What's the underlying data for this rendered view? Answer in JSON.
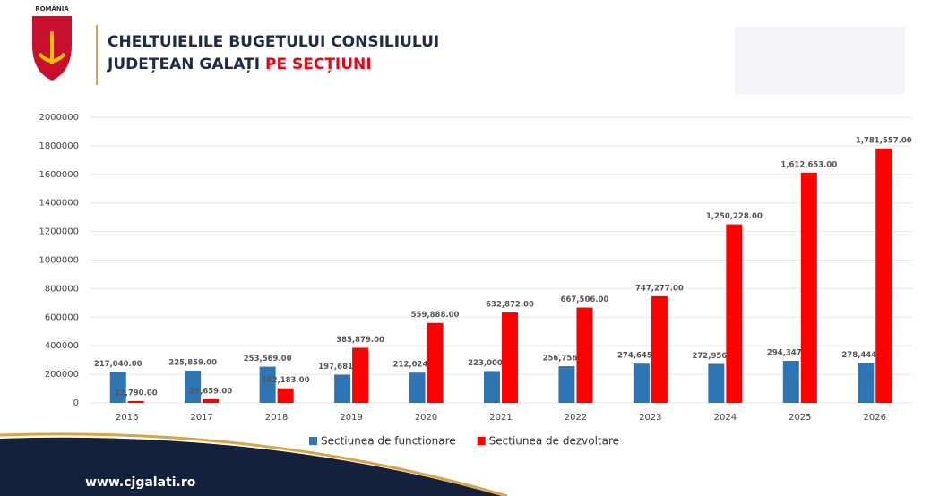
{
  "header": {
    "country": "ROMÂNIA",
    "title_line1": "CHELTUIELILE BUGETULUI CONSILIULUI",
    "title_line2": "JUDEȚEAN GALAȚI",
    "title_highlight": "PE SECȚIUNI"
  },
  "footer": {
    "website": "www.cjgalati.ro"
  },
  "chart_data": {
    "type": "bar",
    "categories": [
      "2016",
      "2017",
      "2018",
      "2019",
      "2020",
      "2021",
      "2022",
      "2023",
      "2024",
      "2025",
      "2026"
    ],
    "series": [
      {
        "name": "Sectiunea de functionare",
        "color": "#2e75b6",
        "values": [
          217040,
          225859,
          253569,
          197681,
          212024,
          223000,
          256756,
          274645,
          272956,
          294347,
          278444
        ],
        "value_labels": [
          "217,040.00",
          "225,859.00",
          "253,569.00",
          "197,681.00",
          "212,024.00",
          "223,000.00",
          "256,756.00",
          "274,645.00",
          "272,956.00",
          "294,347.00",
          "278,444.00"
        ]
      },
      {
        "name": "Sectiunea de dezvoltare",
        "color": "#ff0000",
        "values": [
          12790,
          25659,
          102183,
          385879,
          559888,
          632872,
          667506,
          747277,
          1250228,
          1612653,
          1781557
        ],
        "value_labels": [
          "12,790.00",
          "25,659.00",
          "102,183.00",
          "385,879.00",
          "559,888.00",
          "632,872.00",
          "667,506.00",
          "747,277.00",
          "1,250,228.00",
          "1,612,653.00",
          "1,781,557.00"
        ]
      }
    ],
    "ylim": [
      0,
      2000000
    ],
    "yticks": [
      0,
      200000,
      400000,
      600000,
      800000,
      1000000,
      1200000,
      1400000,
      1600000,
      1800000,
      2000000
    ],
    "grid": true,
    "legend": "bottom"
  }
}
